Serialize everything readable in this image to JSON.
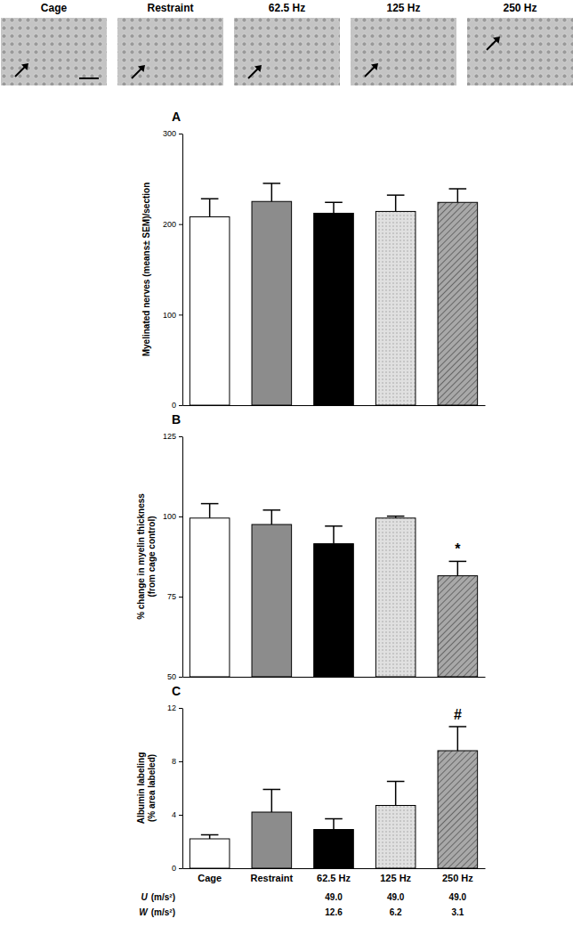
{
  "micrographs": {
    "labels": [
      "Cage",
      "Restraint",
      "62.5 Hz",
      "125 Hz",
      "250 Hz"
    ]
  },
  "chart_data": [
    {
      "type": "bar",
      "title": "A",
      "y_label": [
        "Myelinated nerves (means± SEM)/section"
      ],
      "categories": [
        null,
        null,
        null,
        null,
        null
      ],
      "values": [
        208,
        225,
        212,
        214,
        224
      ],
      "errors": [
        20,
        20,
        12,
        18,
        15
      ],
      "colors": [
        "#ffffff",
        "#8c8c8c",
        "#000000",
        "#e0e0e0",
        "#a8a8a8"
      ],
      "ylim": [
        0,
        300
      ],
      "yticks": [
        0,
        100,
        200,
        300
      ],
      "tick_labels": "y"
    },
    {
      "type": "bar",
      "title": "B",
      "y_label": [
        "% change in myelin thickness",
        "(from cage control)"
      ],
      "categories": [
        null,
        null,
        null,
        null,
        null
      ],
      "values": [
        99.5,
        97.5,
        91.5,
        99.5,
        81.5
      ],
      "errors": [
        4.5,
        4.5,
        5.5,
        0.6,
        4.5
      ],
      "colors": [
        "#ffffff",
        "#8c8c8c",
        "#000000",
        "#e0e0e0",
        "#a8a8a8"
      ],
      "ylim": [
        50,
        125
      ],
      "yticks": [
        50,
        75,
        100,
        125
      ],
      "tick_labels": "y",
      "annotations": [
        {
          "text": "*",
          "index": 4
        }
      ]
    },
    {
      "type": "bar",
      "title": "C",
      "y_label": [
        "Albumin labeling",
        "(% area labeled)"
      ],
      "categories": [
        "Cage",
        "Restraint",
        "62.5 Hz",
        "125 Hz",
        "250 Hz"
      ],
      "values": [
        2.2,
        4.2,
        2.9,
        4.7,
        8.8
      ],
      "errors": [
        0.3,
        1.7,
        0.8,
        1.8,
        1.8
      ],
      "colors": [
        "#ffffff",
        "#8c8c8c",
        "#000000",
        "#e0e0e0",
        "#a8a8a8"
      ],
      "ylim": [
        0,
        12
      ],
      "yticks": [
        0,
        4,
        8,
        12
      ],
      "annotations": [
        {
          "text": "#",
          "index": 4
        }
      ],
      "rows": [
        {
          "name": "U",
          "unit": "(m/s²)",
          "values": [
            null,
            null,
            "49.0",
            "49.0",
            "49.0"
          ]
        },
        {
          "name": "W",
          "unit": "(m/s²)",
          "values": [
            null,
            null,
            "12.6",
            "6.2",
            "3.1"
          ]
        }
      ]
    }
  ]
}
